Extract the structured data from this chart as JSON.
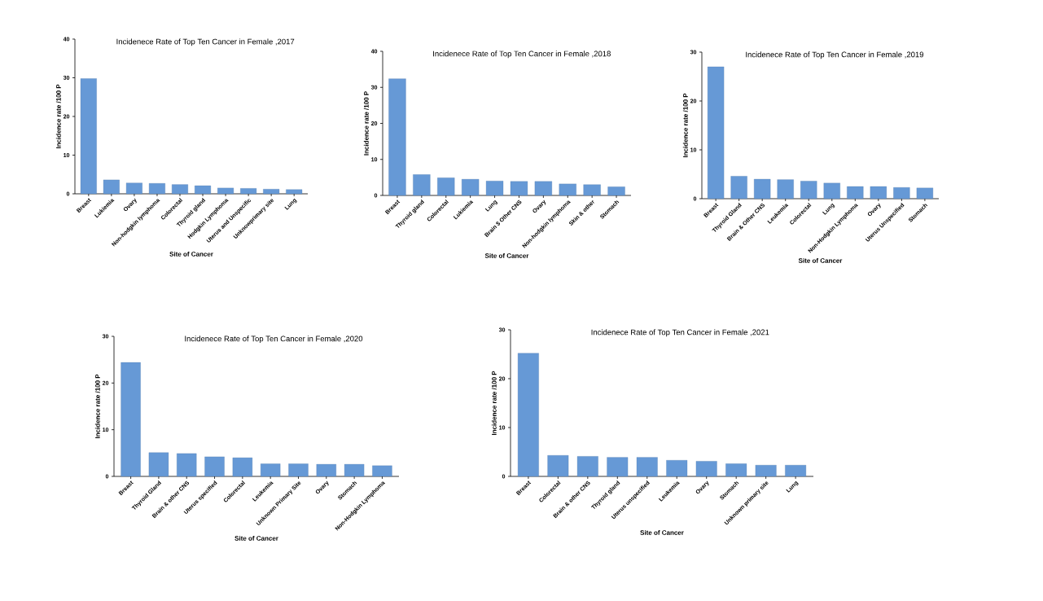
{
  "chart_data": [
    {
      "type": "bar",
      "title": "Incidenece Rate of Top Ten Cancer in Female ,2017",
      "xlabel": "Site of Cancer",
      "ylabel": "Incidence rate /100 P",
      "color": "#6699d6",
      "categories": [
        "Breast",
        "Lukiemia",
        "Ovary",
        "Non-hodgkin lymphoma",
        "Colorectal",
        "Thyroid gland",
        "Hodgkin Lymphoma",
        "Uterus and Unspecific",
        "Unknowprimary site",
        "Lung"
      ],
      "values": [
        29.8,
        3.6,
        2.8,
        2.7,
        2.4,
        2.1,
        1.5,
        1.4,
        1.2,
        1.1
      ],
      "ylim": [
        0,
        40
      ],
      "yticks": [
        0,
        10,
        20,
        30,
        40
      ]
    },
    {
      "type": "bar",
      "title": "Incidenece Rate of Top Ten Cancer in Female ,2018",
      "xlabel": "Site of Cancer",
      "ylabel": "Incidence rate /100 P",
      "color": "#6699d6",
      "categories": [
        "Breast",
        "Thyroid gland",
        "Colorectal",
        "Lukiemia",
        "Lung",
        "Brain $ Other CNS",
        "Ovary",
        "Non-hodgkin lymphoma",
        "Skin & other",
        "Stomach"
      ],
      "values": [
        32.4,
        5.8,
        4.9,
        4.5,
        4.0,
        3.9,
        3.9,
        3.2,
        3.0,
        2.4
      ],
      "ylim": [
        0,
        40
      ],
      "yticks": [
        0,
        10,
        20,
        30,
        40
      ]
    },
    {
      "type": "bar",
      "title": "Incidenece Rate of Top Ten Cancer in Female ,2019",
      "xlabel": "Site of Cancer",
      "ylabel": "Incidence rate /100 P",
      "color": "#6699d6",
      "categories": [
        "Breast",
        "Thyroid Gland",
        "Brain & Other CNS",
        "Leukemia",
        "Colorectal",
        "Lung",
        "Non-Hodgkin Lymphoma",
        "Ovary",
        "Uterus Unspecified",
        "Stomach"
      ],
      "values": [
        27.0,
        4.6,
        4.0,
        3.9,
        3.6,
        3.2,
        2.5,
        2.5,
        2.3,
        2.2
      ],
      "ylim": [
        0,
        30
      ],
      "yticks": [
        0,
        10,
        20,
        30
      ]
    },
    {
      "type": "bar",
      "title": "Incidenece Rate of Top Ten Cancer in Female ,2020",
      "xlabel": "Site of Cancer",
      "ylabel": "Incidence rate /100 P",
      "color": "#6699d6",
      "categories": [
        "Breast",
        "Thyroid Gland",
        "Brain & other CNS",
        "Uterus specified",
        "Colorectal",
        "Leukemia",
        "Unknown Primary Site",
        "Ovary",
        "Stomach",
        "Non-Hodgkin Lymphoma"
      ],
      "values": [
        24.4,
        5.1,
        4.9,
        4.2,
        4.0,
        2.7,
        2.7,
        2.6,
        2.6,
        2.3
      ],
      "ylim": [
        0,
        30
      ],
      "yticks": [
        0,
        10,
        20,
        30
      ]
    },
    {
      "type": "bar",
      "title": "Incidenece Rate of Top Ten Cancer in Female ,2021",
      "xlabel": "Site of Cancer",
      "ylabel": "Incidence rate /100 P",
      "color": "#6699d6",
      "categories": [
        "Breast",
        "Colorectal",
        "Brain & other CNS",
        "Thyroid gland",
        "Uterus unspecified",
        "Leukemia",
        "Ovary",
        "Stomach",
        "Unknown primary site",
        "Lung"
      ],
      "values": [
        25.2,
        4.3,
        4.1,
        3.9,
        3.9,
        3.3,
        3.1,
        2.6,
        2.3,
        2.3
      ],
      "ylim": [
        0,
        30
      ],
      "yticks": [
        0,
        10,
        20,
        30
      ]
    }
  ]
}
